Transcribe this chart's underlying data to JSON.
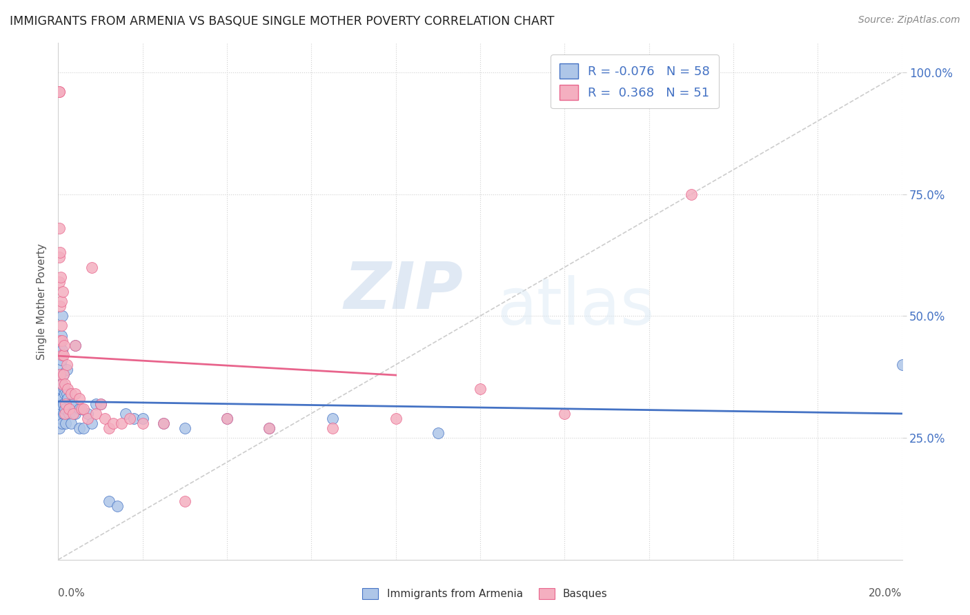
{
  "title": "IMMIGRANTS FROM ARMENIA VS BASQUE SINGLE MOTHER POVERTY CORRELATION CHART",
  "source": "Source: ZipAtlas.com",
  "ylabel": "Single Mother Poverty",
  "right_yticks": [
    "100.0%",
    "75.0%",
    "50.0%",
    "25.0%"
  ],
  "right_ytick_vals": [
    1.0,
    0.75,
    0.5,
    0.25
  ],
  "legend_label1": "Immigrants from Armenia",
  "legend_label2": "Basques",
  "R1": "-0.076",
  "N1": "58",
  "R2": "0.368",
  "N2": "51",
  "color_armenia": "#aec6e8",
  "color_basque": "#f4afc0",
  "color_armenia_line": "#4472c4",
  "color_basque_line": "#e8648c",
  "color_diagonal": "#c0c0c0",
  "watermark_zip": "ZIP",
  "watermark_atlas": "atlas",
  "armenia_x": [
    0.0002,
    0.0002,
    0.0002,
    0.0003,
    0.0003,
    0.0003,
    0.0004,
    0.0004,
    0.0004,
    0.0005,
    0.0005,
    0.0005,
    0.0006,
    0.0006,
    0.0007,
    0.0007,
    0.0008,
    0.0008,
    0.0009,
    0.0009,
    0.001,
    0.001,
    0.001,
    0.0012,
    0.0012,
    0.0013,
    0.0014,
    0.0015,
    0.0016,
    0.0017,
    0.002,
    0.002,
    0.0022,
    0.0025,
    0.003,
    0.003,
    0.0035,
    0.004,
    0.004,
    0.005,
    0.005,
    0.006,
    0.007,
    0.008,
    0.009,
    0.01,
    0.012,
    0.014,
    0.016,
    0.018,
    0.02,
    0.025,
    0.03,
    0.04,
    0.05,
    0.065,
    0.09,
    0.2
  ],
  "armenia_y": [
    0.3,
    0.28,
    0.33,
    0.35,
    0.31,
    0.27,
    0.42,
    0.38,
    0.29,
    0.44,
    0.37,
    0.32,
    0.4,
    0.34,
    0.46,
    0.29,
    0.41,
    0.35,
    0.33,
    0.28,
    0.5,
    0.43,
    0.36,
    0.38,
    0.32,
    0.3,
    0.35,
    0.31,
    0.34,
    0.28,
    0.39,
    0.34,
    0.33,
    0.3,
    0.32,
    0.28,
    0.32,
    0.44,
    0.3,
    0.31,
    0.27,
    0.27,
    0.3,
    0.28,
    0.32,
    0.32,
    0.12,
    0.11,
    0.3,
    0.29,
    0.29,
    0.28,
    0.27,
    0.29,
    0.27,
    0.29,
    0.26,
    0.4
  ],
  "basque_x": [
    0.0002,
    0.0002,
    0.0003,
    0.0003,
    0.0003,
    0.0004,
    0.0004,
    0.0005,
    0.0005,
    0.0006,
    0.0007,
    0.0008,
    0.0009,
    0.001,
    0.001,
    0.0011,
    0.0012,
    0.0013,
    0.0014,
    0.0015,
    0.0016,
    0.0018,
    0.002,
    0.0022,
    0.0025,
    0.003,
    0.0035,
    0.004,
    0.004,
    0.005,
    0.0055,
    0.006,
    0.007,
    0.008,
    0.009,
    0.01,
    0.011,
    0.012,
    0.013,
    0.015,
    0.017,
    0.02,
    0.025,
    0.03,
    0.04,
    0.05,
    0.065,
    0.08,
    0.1,
    0.12,
    0.15
  ],
  "basque_y": [
    0.96,
    0.96,
    0.68,
    0.62,
    0.57,
    0.52,
    0.38,
    0.63,
    0.45,
    0.58,
    0.53,
    0.48,
    0.42,
    0.45,
    0.36,
    0.55,
    0.42,
    0.38,
    0.44,
    0.36,
    0.3,
    0.32,
    0.4,
    0.35,
    0.31,
    0.34,
    0.3,
    0.44,
    0.34,
    0.33,
    0.31,
    0.31,
    0.29,
    0.6,
    0.3,
    0.32,
    0.29,
    0.27,
    0.28,
    0.28,
    0.29,
    0.28,
    0.28,
    0.12,
    0.29,
    0.27,
    0.27,
    0.29,
    0.35,
    0.3,
    0.75
  ],
  "xlim": [
    0.0,
    0.2
  ],
  "ylim": [
    0.0,
    1.06
  ],
  "xgrid_ticks": [
    0.02,
    0.04,
    0.06,
    0.08,
    0.1,
    0.12,
    0.14,
    0.16,
    0.18,
    0.2
  ],
  "ygrid_ticks": [
    0.25,
    0.5,
    0.75,
    1.0
  ]
}
